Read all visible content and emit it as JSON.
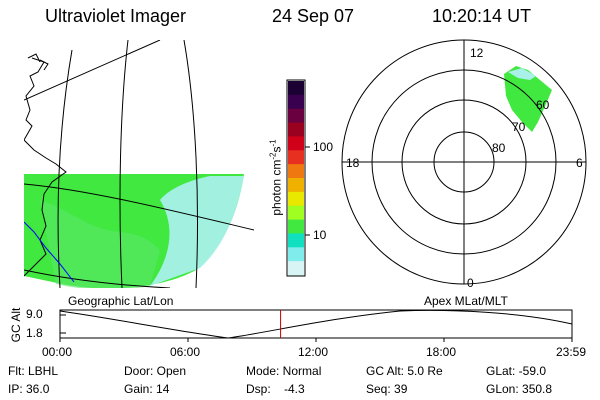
{
  "header": {
    "title": "Ultraviolet Imager",
    "date": "24 Sep 07",
    "time": "10:20:14 UT"
  },
  "colorbar": {
    "unit_label": "photon cm",
    "unit_exp": "-2",
    "unit_rest": "s",
    "unit_exp2": "-1",
    "tick_100": "100",
    "tick_10": "10",
    "colors": [
      "#1a0033",
      "#3a0050",
      "#6a0040",
      "#9a0020",
      "#d00018",
      "#e83020",
      "#f07810",
      "#f0b000",
      "#e8e800",
      "#a0ff20",
      "#40e840",
      "#10e0c0",
      "#80ecec",
      "#d8f4f4"
    ]
  },
  "panels": {
    "left_caption": "Geographic Lat/Lon",
    "right_caption": "Apex MLat/MLT",
    "polar_labels": {
      "mlt_12": "12",
      "mlt_18": "18",
      "mlt_6": "6",
      "mlt_0": "0",
      "lat_60": "60",
      "lat_70": "70",
      "lat_80": "80"
    },
    "colors": {
      "aurora_green": "#40e840",
      "aurora_light": "#a8f0e8",
      "coast_blue": "#0000ff"
    }
  },
  "timeline": {
    "axis_label": "GC Alt",
    "y_top": "9.0",
    "y_bottom": "1.8",
    "x_labels": [
      "00:00",
      "06:00",
      "12:00",
      "18:00",
      "23:59"
    ],
    "marker_color": "#c00000",
    "marker_time_hours": 10.34
  },
  "footer": {
    "row1": {
      "filter": "Flt: LBHL",
      "door": "Door: Open",
      "mode": "Mode: Normal",
      "gcalt": "GC Alt: 5.0 Re",
      "glat": "GLat: -59.0"
    },
    "row2": {
      "ip": "IP: 36.0",
      "gain": "Gain: 14",
      "dsp": "Dsp:    -4.3",
      "seq": "Seq: 39",
      "glon": "GLon: 350.8"
    }
  }
}
